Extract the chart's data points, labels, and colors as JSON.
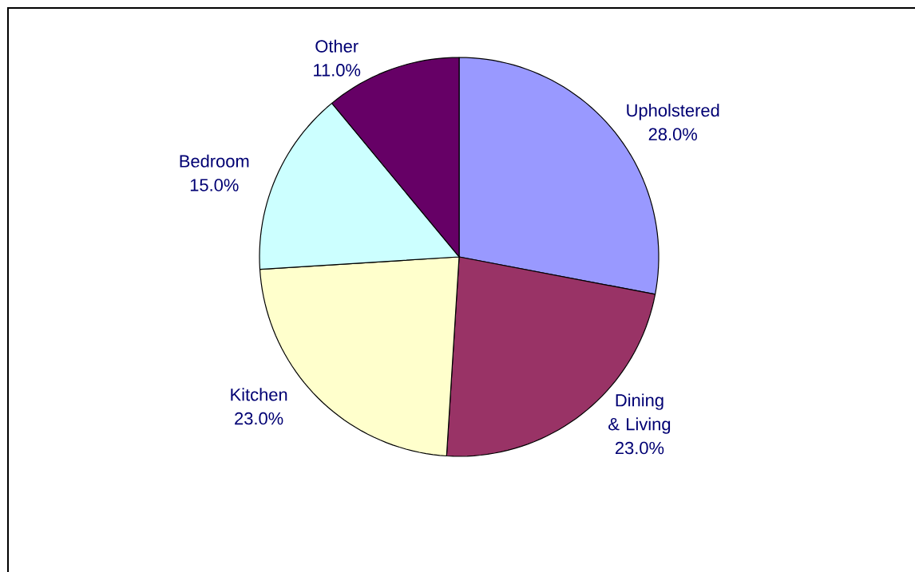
{
  "chart_data": {
    "type": "pie",
    "categories": [
      "Upholstered",
      "Dining & Living",
      "Kitchen",
      "Bedroom",
      "Other"
    ],
    "values": [
      28,
      23,
      23,
      15,
      11
    ],
    "value_labels": [
      "28.0%",
      "23.0%",
      "23.0%",
      "15.0%",
      "11.0%"
    ],
    "colors": [
      "#9999ff",
      "#993366",
      "#ffffcc",
      "#ccffff",
      "#660066"
    ]
  }
}
